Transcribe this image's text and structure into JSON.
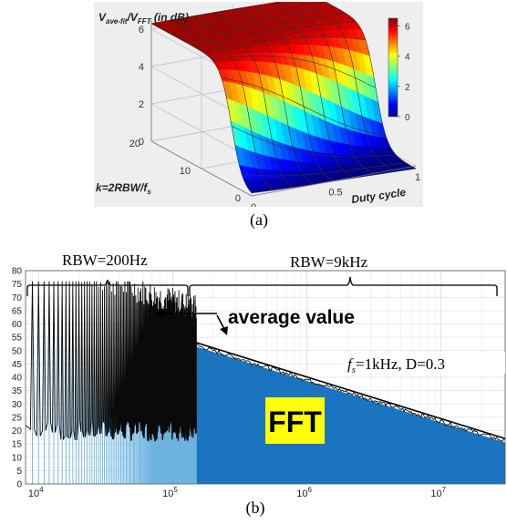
{
  "captions": {
    "a": "(a)",
    "b": "(b)"
  },
  "chart_data": [
    {
      "type": "surface3d",
      "title": "",
      "zlabel": "V_ave-fit/V_FFT (in dB)",
      "zlabel_main": "V",
      "zlabel_sub1": "ave-fit",
      "zlabel_mid": "/V",
      "zlabel_sub2": "FFT",
      "zlabel_tail": " (in dB)",
      "ylabel": "k=2RBW/f_s",
      "ylabel_main": "k=2RBW/",
      "ylabel_f": "f",
      "ylabel_s": "s",
      "xlabel": "Duty cycle",
      "z_ticks": [
        "0",
        "2",
        "4",
        "6"
      ],
      "k_ticks": [
        "0",
        "10",
        "20"
      ],
      "duty_ticks": [
        "0",
        "0.5",
        "1"
      ],
      "colorbar_ticks": [
        "0",
        "2",
        "4",
        "6"
      ],
      "zlim": [
        0,
        6.5
      ],
      "klim": [
        0,
        20
      ],
      "duty_lim": [
        0,
        1
      ],
      "colormap": "jet"
    },
    {
      "type": "line",
      "x_scale": "log",
      "xlim": [
        8000,
        30000000
      ],
      "ylim": [
        0,
        80
      ],
      "y_ticks": [
        "0",
        "5",
        "10",
        "15",
        "20",
        "25",
        "30",
        "35",
        "40",
        "45",
        "50",
        "55",
        "60",
        "65",
        "70",
        "75",
        "80"
      ],
      "x_ticks": [
        {
          "base": "10",
          "exp": "4"
        },
        {
          "base": "10",
          "exp": "5"
        },
        {
          "base": "10",
          "exp": "6"
        },
        {
          "base": "10",
          "exp": "7"
        }
      ],
      "grid": true,
      "annotations": {
        "rbw_low": "RBW=200Hz",
        "rbw_high": "RBW=9kHz",
        "average": "average value",
        "fft": "FFT",
        "fs_f": "f",
        "fs_s": "s",
        "fs_rest": "=1kHz, D=0.3"
      },
      "colors": {
        "fft": "#1b74bf",
        "light_fft": "#6cb3e0",
        "measured": "#0a0a0a",
        "fft_label_bg": "#ffff00"
      },
      "series": [
        {
          "label": "average",
          "x": [
            150000,
            30000000
          ],
          "y": [
            53,
            17
          ]
        }
      ]
    }
  ]
}
